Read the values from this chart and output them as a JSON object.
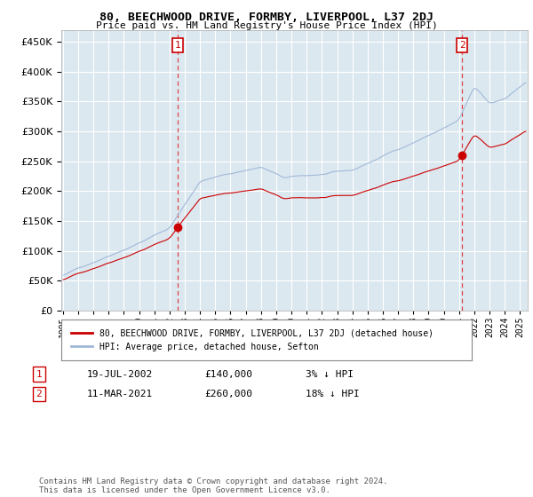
{
  "title": "80, BEECHWOOD DRIVE, FORMBY, LIVERPOOL, L37 2DJ",
  "subtitle": "Price paid vs. HM Land Registry's House Price Index (HPI)",
  "ylim": [
    0,
    470000
  ],
  "ytick_vals": [
    0,
    50000,
    100000,
    150000,
    200000,
    250000,
    300000,
    350000,
    400000,
    450000
  ],
  "xlim_start": 1995.0,
  "xlim_end": 2025.5,
  "marker1_x": 2002.55,
  "marker1_y": 140000,
  "marker2_x": 2021.19,
  "marker2_y": 260000,
  "legend_line1": "80, BEECHWOOD DRIVE, FORMBY, LIVERPOOL, L37 2DJ (detached house)",
  "legend_line2": "HPI: Average price, detached house, Sefton",
  "annotation1_date": "19-JUL-2002",
  "annotation1_price": "£140,000",
  "annotation1_hpi": "3% ↓ HPI",
  "annotation2_date": "11-MAR-2021",
  "annotation2_price": "£260,000",
  "annotation2_hpi": "18% ↓ HPI",
  "footer": "Contains HM Land Registry data © Crown copyright and database right 2024.\nThis data is licensed under the Open Government Licence v3.0.",
  "hpi_color": "#a0b8d8",
  "price_color": "#cc0000",
  "vline_color": "#dd4444",
  "background_color": "#ffffff",
  "plot_bg_color": "#dce8f0",
  "grid_color": "#ffffff"
}
